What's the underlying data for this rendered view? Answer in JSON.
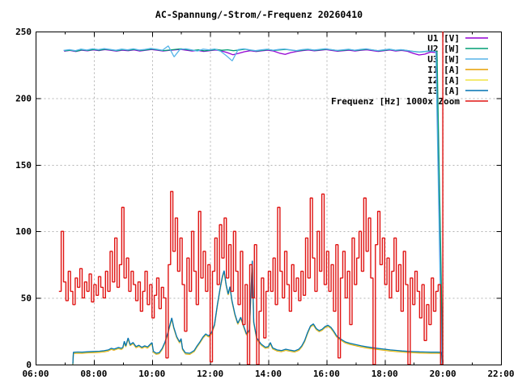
{
  "page": {
    "background": "#ffffff",
    "text_color": "#000000"
  },
  "chart_data": {
    "type": "line",
    "title": "AC-Spannung/-Strom/-Frequenz 20260410",
    "grid": true,
    "grid_color": "#b4b4b4",
    "legend_position": "top-right-inside",
    "x_axis": {
      "unit": "time",
      "min_hour": 6,
      "max_hour": 22,
      "major_ticks": [
        {
          "h": 6,
          "label": "06:00"
        },
        {
          "h": 8,
          "label": "08:00"
        },
        {
          "h": 10,
          "label": "10:00"
        },
        {
          "h": 12,
          "label": "12:00"
        },
        {
          "h": 14,
          "label": "14:00"
        },
        {
          "h": 16,
          "label": "16:00"
        },
        {
          "h": 18,
          "label": "18:00"
        },
        {
          "h": 20,
          "label": "20:00"
        },
        {
          "h": 22,
          "label": "22:00"
        }
      ],
      "minor_ticks": [
        7,
        9,
        11,
        13,
        15,
        17,
        19,
        21
      ],
      "grid_hours": [
        8,
        10,
        12,
        14,
        16,
        18,
        20
      ]
    },
    "y_axis": {
      "min": 0,
      "max": 250,
      "ticks": [
        {
          "v": 0,
          "label": "0"
        },
        {
          "v": 50,
          "label": "50"
        },
        {
          "v": 100,
          "label": "100"
        },
        {
          "v": 150,
          "label": "150"
        },
        {
          "v": 200,
          "label": "200"
        },
        {
          "v": 250,
          "label": "250"
        }
      ],
      "grid_values": [
        50,
        100,
        150,
        200
      ]
    },
    "series": [
      {
        "name": "U1",
        "label": "U1 [V]",
        "color": "#9400d3",
        "mode": "line",
        "width": 1.3,
        "t0": 6.98,
        "dt": 0.2,
        "values": [
          235.2,
          235.8,
          235.0,
          236.0,
          235.5,
          236.2,
          235.7,
          236.4,
          235.9,
          235.3,
          236.0,
          235.6,
          236.2,
          235.4,
          235.9,
          236.5,
          236.0,
          235.4,
          235.8,
          236.2,
          236.6,
          236.0,
          235.4,
          235.8,
          235.1,
          235.6,
          236.1,
          235.5,
          234.2,
          232.6,
          233.6,
          234.8,
          235.6,
          235.0,
          235.5,
          236.0,
          235.4,
          233.8,
          232.8,
          234.2,
          235.1,
          235.7,
          236.1,
          235.5,
          235.9,
          236.4,
          235.8,
          235.2,
          235.6,
          236.0,
          235.4,
          235.9,
          236.3,
          235.7,
          235.1,
          235.6,
          236.1,
          235.4,
          235.8,
          235.2,
          233.6,
          232.4,
          233.0,
          234.6,
          234.2,
          0
        ]
      },
      {
        "name": "U2",
        "label": "U2 [W]",
        "color": "#009e73",
        "mode": "line",
        "width": 1.3,
        "t0": 7.0,
        "dt": 0.2,
        "values": [
          235.5,
          236.0,
          235.2,
          236.3,
          235.8,
          236.5,
          236.0,
          236.8,
          236.2,
          235.6,
          236.4,
          236.0,
          236.6,
          235.8,
          236.2,
          236.9,
          236.3,
          235.7,
          236.1,
          236.6,
          237.0,
          236.4,
          235.8,
          236.2,
          235.5,
          236.0,
          236.5,
          235.9,
          236.3,
          235.6,
          236.1,
          236.7,
          236.0,
          235.4,
          235.9,
          236.4,
          235.8,
          236.2,
          236.6,
          236.0,
          235.5,
          236.1,
          236.5,
          235.9,
          236.3,
          236.8,
          236.2,
          235.6,
          236.0,
          236.4,
          235.8,
          236.3,
          236.7,
          236.1,
          235.5,
          236.0,
          236.5,
          235.8,
          236.2,
          235.6,
          235.0,
          234.5,
          235.0,
          235.4,
          234.9,
          0
        ]
      },
      {
        "name": "U3",
        "label": "U3 [W]",
        "color": "#56b4e9",
        "mode": "line",
        "width": 1.3,
        "t0": 6.96,
        "dt": 0.2,
        "values": [
          235.8,
          236.4,
          235.6,
          236.8,
          236.1,
          237.0,
          236.4,
          237.2,
          236.6,
          235.9,
          236.8,
          236.3,
          237.0,
          236.1,
          236.6,
          237.3,
          236.7,
          236.0,
          239.2,
          231.0,
          236.5,
          237.0,
          236.2,
          235.4,
          236.8,
          236.3,
          236.9,
          235.2,
          231.8,
          228.0,
          236.4,
          237.0,
          236.3,
          235.6,
          236.2,
          236.7,
          236.0,
          236.5,
          236.9,
          236.2,
          235.7,
          236.4,
          236.8,
          236.1,
          236.6,
          237.1,
          236.4,
          235.8,
          236.3,
          236.7,
          236.0,
          236.6,
          237.0,
          236.3,
          235.7,
          236.2,
          236.8,
          236.0,
          236.4,
          235.8,
          235.1,
          234.5,
          235.0,
          235.5,
          234.9,
          0
        ]
      },
      {
        "name": "I1",
        "label": "I1 [A]",
        "color": "#e69f00",
        "mode": "line",
        "width": 1.3,
        "base": "I3",
        "offset": -0.8
      },
      {
        "name": "I2",
        "label": "I2 [A]",
        "color": "#f0e442",
        "mode": "line",
        "width": 1.3,
        "base": "I3",
        "offset": -0.4
      },
      {
        "name": "I3",
        "label": "I3 [A]",
        "color": "#0072b2",
        "mode": "line",
        "width": 1.3,
        "points": [
          [
            7.28,
            0.3
          ],
          [
            7.3,
            9.2
          ],
          [
            7.45,
            9.4
          ],
          [
            7.6,
            9.3
          ],
          [
            7.8,
            9.6
          ],
          [
            8.0,
            9.8
          ],
          [
            8.2,
            10.0
          ],
          [
            8.35,
            10.4
          ],
          [
            8.5,
            11.0
          ],
          [
            8.6,
            12.2
          ],
          [
            8.7,
            11.6
          ],
          [
            8.85,
            12.8
          ],
          [
            8.95,
            12.2
          ],
          [
            9.0,
            13.0
          ],
          [
            9.05,
            17.5
          ],
          [
            9.1,
            14.0
          ],
          [
            9.18,
            20.0
          ],
          [
            9.25,
            15.0
          ],
          [
            9.35,
            16.5
          ],
          [
            9.45,
            13.5
          ],
          [
            9.55,
            14.5
          ],
          [
            9.65,
            13.0
          ],
          [
            9.75,
            14.0
          ],
          [
            9.85,
            13.2
          ],
          [
            9.95,
            15.5
          ],
          [
            10.0,
            16.5
          ],
          [
            10.05,
            10.0
          ],
          [
            10.15,
            8.5
          ],
          [
            10.25,
            9.0
          ],
          [
            10.35,
            12.0
          ],
          [
            10.45,
            17.0
          ],
          [
            10.55,
            24.0
          ],
          [
            10.62,
            30.0
          ],
          [
            10.68,
            35.0
          ],
          [
            10.75,
            28.0
          ],
          [
            10.85,
            21.0
          ],
          [
            10.95,
            17.0
          ],
          [
            11.0,
            19.5
          ],
          [
            11.05,
            12.0
          ],
          [
            11.15,
            8.8
          ],
          [
            11.3,
            8.5
          ],
          [
            11.45,
            10.5
          ],
          [
            11.55,
            14.0
          ],
          [
            11.65,
            17.0
          ],
          [
            11.75,
            20.5
          ],
          [
            11.85,
            23.0
          ],
          [
            11.95,
            21.5
          ],
          [
            12.05,
            24.0
          ],
          [
            12.15,
            30.0
          ],
          [
            12.25,
            45.0
          ],
          [
            12.35,
            58.0
          ],
          [
            12.42,
            66.0
          ],
          [
            12.48,
            70.5
          ],
          [
            12.55,
            60.0
          ],
          [
            12.62,
            53.0
          ],
          [
            12.68,
            58.5
          ],
          [
            12.75,
            48.0
          ],
          [
            12.85,
            38.0
          ],
          [
            12.95,
            31.0
          ],
          [
            13.05,
            35.5
          ],
          [
            13.15,
            29.0
          ],
          [
            13.25,
            23.0
          ],
          [
            13.35,
            26.0
          ],
          [
            13.45,
            78.0
          ],
          [
            13.5,
            32.0
          ],
          [
            13.6,
            20.0
          ],
          [
            13.75,
            15.5
          ],
          [
            13.9,
            13.0
          ],
          [
            14.0,
            13.5
          ],
          [
            14.07,
            16.5
          ],
          [
            14.15,
            12.5
          ],
          [
            14.3,
            11.0
          ],
          [
            14.45,
            10.5
          ],
          [
            14.6,
            11.5
          ],
          [
            14.75,
            10.8
          ],
          [
            14.9,
            10.2
          ],
          [
            15.05,
            11.5
          ],
          [
            15.15,
            14.0
          ],
          [
            15.25,
            18.0
          ],
          [
            15.35,
            24.0
          ],
          [
            15.45,
            29.0
          ],
          [
            15.55,
            30.5
          ],
          [
            15.65,
            27.0
          ],
          [
            15.75,
            25.5
          ],
          [
            15.85,
            26.5
          ],
          [
            15.95,
            28.5
          ],
          [
            16.05,
            29.5
          ],
          [
            16.15,
            28.0
          ],
          [
            16.25,
            25.0
          ],
          [
            16.35,
            21.5
          ],
          [
            16.5,
            19.0
          ],
          [
            16.65,
            17.0
          ],
          [
            16.8,
            16.0
          ],
          [
            17.0,
            15.0
          ],
          [
            17.2,
            14.0
          ],
          [
            17.4,
            13.2
          ],
          [
            17.6,
            12.6
          ],
          [
            17.8,
            12.0
          ],
          [
            18.0,
            11.5
          ],
          [
            18.2,
            11.0
          ],
          [
            18.4,
            10.6
          ],
          [
            18.6,
            10.2
          ],
          [
            18.8,
            9.9
          ],
          [
            19.0,
            9.7
          ],
          [
            19.2,
            9.5
          ],
          [
            19.4,
            9.4
          ],
          [
            19.6,
            9.3
          ],
          [
            19.8,
            9.3
          ],
          [
            19.95,
            9.2
          ],
          [
            20.0,
            0.2
          ]
        ]
      },
      {
        "name": "Frequenz",
        "label": "Frequenz [Hz] 1000x Zoom",
        "color": "#e01312",
        "mode": "steps",
        "width": 1.4,
        "t0": 6.8,
        "dt": 0.08,
        "values": [
          55,
          100,
          62,
          48,
          70,
          55,
          45,
          65,
          58,
          72,
          50,
          62,
          55,
          68,
          47,
          60,
          52,
          66,
          58,
          50,
          70,
          55,
          85,
          62,
          95,
          58,
          75,
          118,
          65,
          80,
          55,
          70,
          60,
          48,
          62,
          40,
          55,
          70,
          45,
          60,
          35,
          52,
          65,
          42,
          58,
          50,
          5,
          75,
          130,
          85,
          110,
          70,
          95,
          60,
          25,
          80,
          55,
          100,
          70,
          45,
          115,
          65,
          85,
          55,
          75,
          2,
          70,
          95,
          60,
          105,
          80,
          110,
          65,
          90,
          55,
          100,
          70,
          45,
          85,
          30,
          60,
          0,
          75,
          50,
          90,
          0,
          40,
          65,
          20,
          55,
          70,
          55,
          80,
          45,
          118,
          70,
          50,
          85,
          60,
          40,
          75,
          55,
          65,
          48,
          70,
          52,
          95,
          65,
          125,
          80,
          55,
          100,
          70,
          128,
          60,
          85,
          55,
          75,
          40,
          90,
          5,
          65,
          85,
          50,
          70,
          30,
          95,
          60,
          80,
          100,
          70,
          125,
          85,
          110,
          65,
          0,
          90,
          115,
          75,
          95,
          60,
          80,
          50,
          70,
          95,
          55,
          75,
          40,
          85,
          60,
          0,
          65,
          45,
          70,
          55,
          35,
          60,
          18,
          45,
          30,
          65,
          40,
          55,
          60,
          0,
          250
        ]
      }
    ]
  }
}
